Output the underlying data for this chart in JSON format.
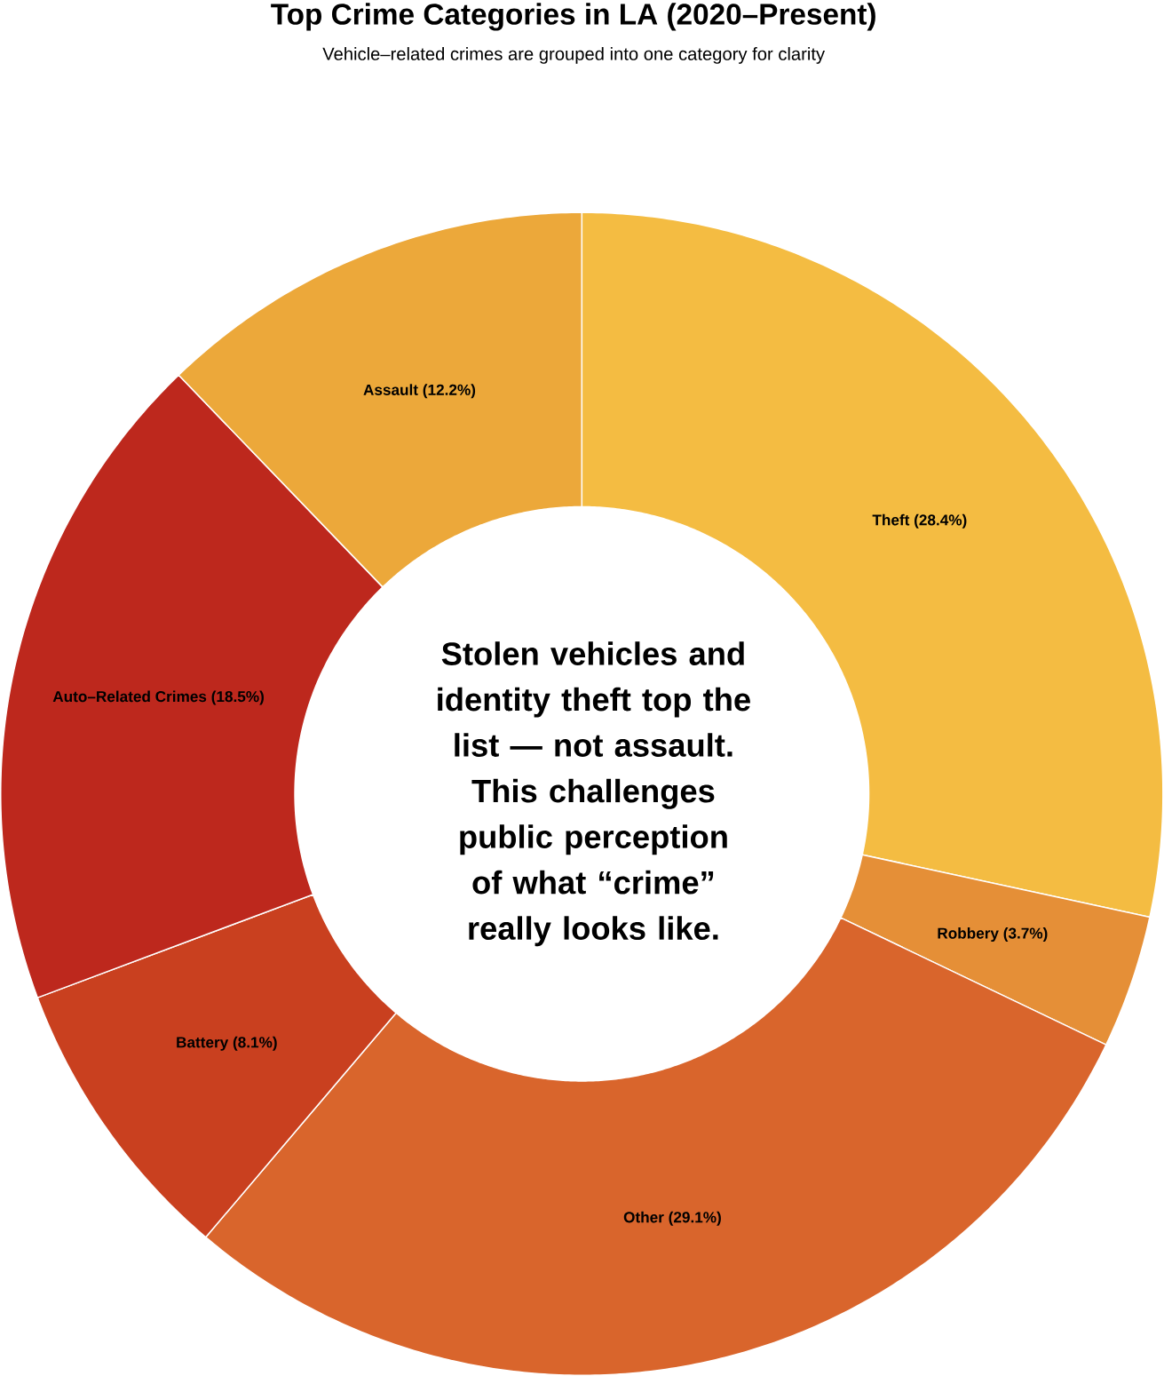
{
  "chart_data": {
    "type": "donut",
    "title": "Top Crime Categories in LA (2020–Present)",
    "subtitle": "Vehicle–related crimes are grouped into one category for clarity",
    "categories": [
      "Theft",
      "Robbery",
      "Other",
      "Battery",
      "Auto–Related Crimes",
      "Assault"
    ],
    "values": [
      28.4,
      3.7,
      29.1,
      8.1,
      18.5,
      12.2
    ],
    "value_labels": [
      "(28.4%)",
      "(3.7%)",
      "(29.1%)",
      "(8.1%)",
      "(18.5%)",
      "(12.2%)"
    ],
    "colors": [
      "#f4bc42",
      "#e58f37",
      "#d9652c",
      "#c9401f",
      "#bd281d",
      "#eca83a"
    ],
    "annotations": [
      "Stolen vehicles and identity theft top the list — not assault. This challenges public perception of what “crime” really looks like."
    ]
  }
}
